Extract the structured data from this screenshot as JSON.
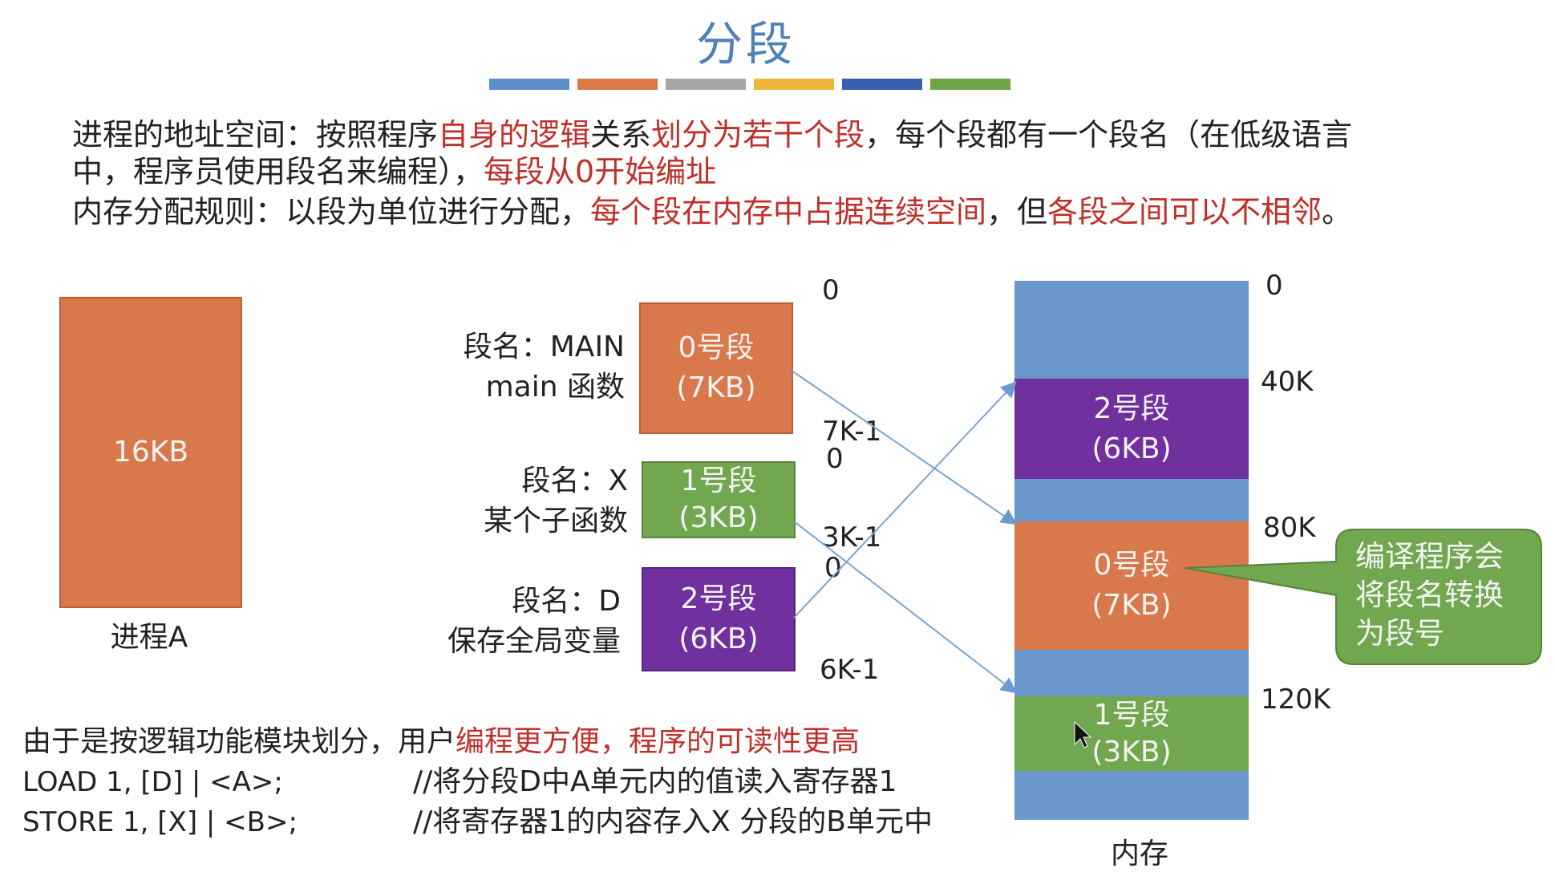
{
  "title": "分段",
  "color_bars": [
    "#5b8ec9",
    "#db7a44",
    "#a6a6a6",
    "#f0b43a",
    "#3a5fae",
    "#6ea446"
  ],
  "intro": {
    "line1_a": "进程的地址空间：按照程序",
    "line1_b": "自身的逻辑",
    "line1_c": "关系",
    "line1_d": "划分为若干个段",
    "line1_e": "，每个段都有一个段名（在低级语言",
    "line2_a": "中，程序员使用段名来编程），",
    "line2_b": "每段从0开始编址",
    "line3_a": "内存分配规则：以段为单位进行分配，",
    "line3_b": "每个段在内存中占据连续空间",
    "line3_c": "，但",
    "line3_d": "各段之间可以不相邻",
    "line3_e": "。"
  },
  "process": {
    "size_label": "16KB",
    "caption": "进程A"
  },
  "segments": [
    {
      "name_line1": "段名：MAIN",
      "name_line2": "main 函数",
      "title": "0号段",
      "size": "(7KB)",
      "start": "0",
      "end": "7K-1"
    },
    {
      "name_line1": "段名：X",
      "name_line2": "某个子函数",
      "title": "1号段",
      "size": "(3KB)",
      "start": "0",
      "end": "3K-1"
    },
    {
      "name_line1": "段名：D",
      "name_line2": "保存全局变量",
      "title": "2号段",
      "size": "(6KB)",
      "start": "0",
      "end": "6K-1"
    }
  ],
  "memory": {
    "addresses": [
      "0",
      "40K",
      "80K",
      "120K"
    ],
    "blocks": [
      {
        "title": "2号段",
        "size": "(6KB)"
      },
      {
        "title": "0号段",
        "size": "(7KB)"
      },
      {
        "title": "1号段",
        "size": "(3KB)"
      }
    ],
    "caption": "内存"
  },
  "callout": {
    "line1": "编译程序会",
    "line2": "将段名转换",
    "line3": "为段号"
  },
  "bottom": {
    "line1_a": "由于是按逻辑功能模块划分，用户",
    "line1_b": "编程更方便，程序的可读性更高",
    "code1": "LOAD 1, [D] | <A>;",
    "comment1": "//将分段D中A单元内的值读入寄存器1",
    "code2": "STORE 1, [X] | <B>;",
    "comment2": "//将寄存器1的内容存入X 分段的B单元中"
  }
}
